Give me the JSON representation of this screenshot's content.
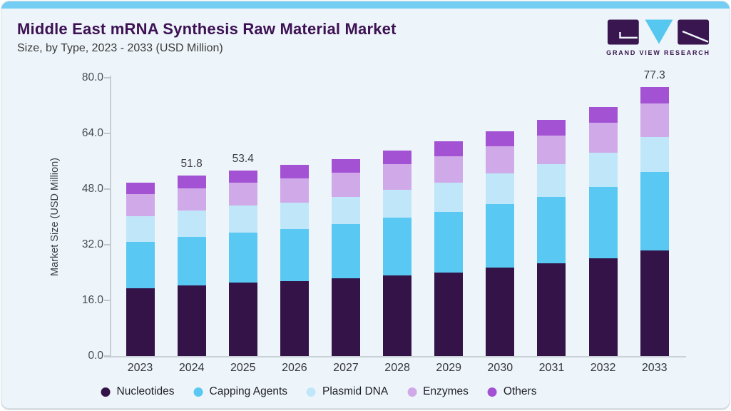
{
  "page": {
    "title": "Middle East mRNA Synthesis Raw Material Market",
    "subtitle": "Size, by Type, 2023 - 2033 (USD Million)",
    "brand_name": "GRAND VIEW RESEARCH",
    "accent_color": "#74cef3",
    "card_background": "#eef5fa",
    "title_color": "#3d1253"
  },
  "chart_data": {
    "type": "bar",
    "stacked": true,
    "title": "Middle East mRNA Synthesis Raw Material Market",
    "subtitle": "Size, by Type, 2023 - 2033 (USD Million)",
    "xlabel": "",
    "ylabel": "Market Size (USD Million)",
    "ylim": [
      0,
      80
    ],
    "yticks": [
      0.0,
      16.0,
      32.0,
      48.0,
      64.0,
      80.0
    ],
    "grid": false,
    "legend_position": "bottom",
    "categories": [
      "2023",
      "2024",
      "2025",
      "2026",
      "2027",
      "2028",
      "2029",
      "2030",
      "2031",
      "2032",
      "2033"
    ],
    "series": [
      {
        "name": "Nucleotides",
        "color": "#341448",
        "values": [
          19.4,
          20.4,
          21.1,
          21.5,
          22.3,
          23.2,
          24.1,
          25.4,
          26.7,
          28.2,
          30.4
        ]
      },
      {
        "name": "Capping Agents",
        "color": "#59c8f3",
        "values": [
          13.4,
          13.9,
          14.3,
          15.0,
          15.6,
          16.5,
          17.3,
          18.2,
          19.1,
          20.5,
          22.6
        ]
      },
      {
        "name": "Plasmid DNA",
        "color": "#c0e7f9",
        "values": [
          7.5,
          7.5,
          7.8,
          7.7,
          7.8,
          8.0,
          8.4,
          9.0,
          9.4,
          9.7,
          10.0
        ]
      },
      {
        "name": "Enzymes",
        "color": "#d0a9e9",
        "values": [
          6.2,
          6.5,
          6.6,
          6.9,
          7.1,
          7.4,
          7.6,
          7.8,
          8.1,
          8.7,
          9.7
        ]
      },
      {
        "name": "Others",
        "color": "#a452d4",
        "values": [
          3.4,
          3.5,
          3.6,
          3.9,
          3.9,
          4.0,
          4.3,
          4.3,
          4.5,
          4.5,
          4.6
        ]
      }
    ],
    "totals": [
      49.9,
      51.8,
      53.4,
      55.0,
      56.7,
      59.1,
      61.7,
      64.7,
      67.8,
      71.6,
      77.3
    ],
    "bar_value_labels": [
      "",
      "51.8",
      "53.4",
      "",
      "",
      "",
      "",
      "",
      "",
      "",
      "77.3"
    ]
  }
}
